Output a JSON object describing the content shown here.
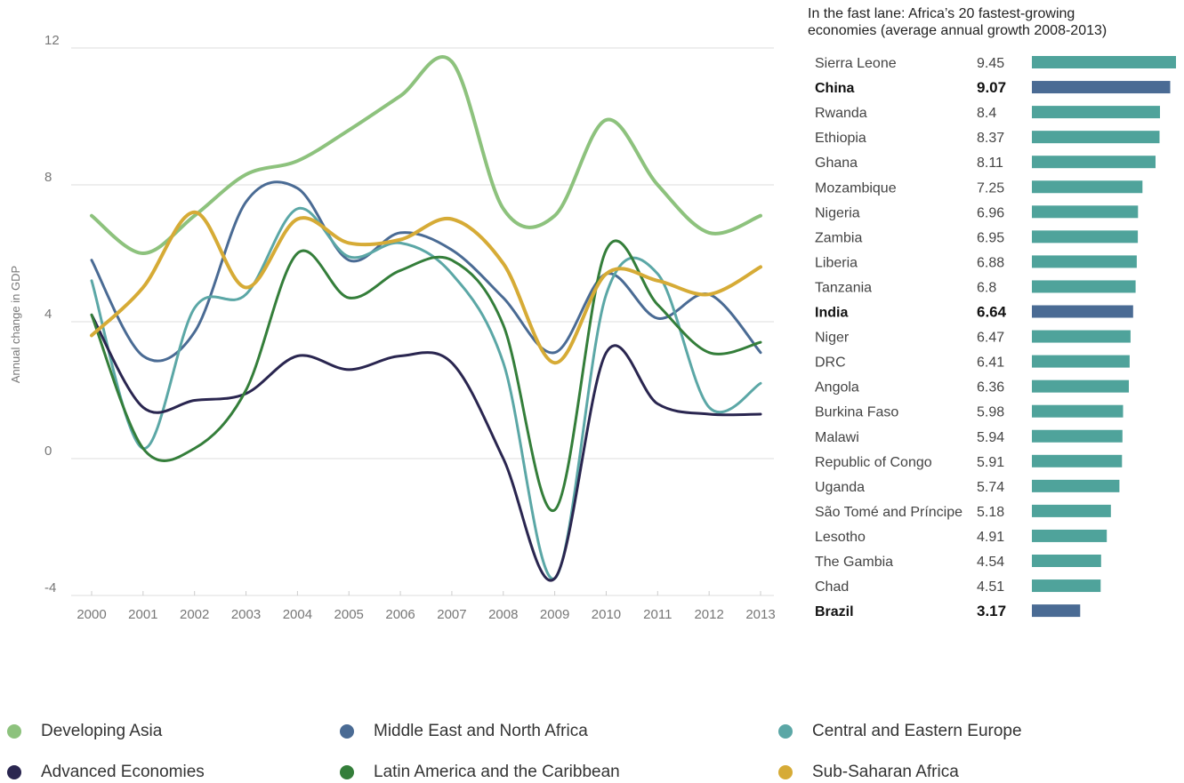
{
  "chart_data": [
    {
      "type": "line",
      "ylabel": "Annual change in GDP",
      "ylim": [
        -4,
        12
      ],
      "y_ticks": [
        "12",
        "8",
        "4",
        "0",
        "-4"
      ],
      "x": [
        "2000",
        "2001",
        "2002",
        "2003",
        "2004",
        "2005",
        "2006",
        "2007",
        "2008",
        "2009",
        "2010",
        "2011",
        "2012",
        "2013"
      ],
      "grid": "horizontal",
      "legend_position": "bottom",
      "series": [
        {
          "name": "Developing Asia",
          "color": "#8dc27d",
          "values": [
            7.1,
            6.0,
            7.1,
            8.3,
            8.7,
            9.6,
            10.6,
            11.6,
            7.3,
            7.1,
            9.9,
            8.0,
            6.6,
            7.1
          ]
        },
        {
          "name": "Middle East and North Africa",
          "color": "#4a6b94",
          "values": [
            5.8,
            3.0,
            3.7,
            7.5,
            7.9,
            5.8,
            6.6,
            6.1,
            4.7,
            3.1,
            5.4,
            4.1,
            4.8,
            3.1
          ]
        },
        {
          "name": "Central and Eastern Europe",
          "color": "#5ba7a6",
          "values": [
            5.2,
            0.3,
            4.4,
            4.8,
            7.3,
            5.9,
            6.3,
            5.4,
            2.8,
            -3.5,
            4.8,
            5.4,
            1.5,
            2.2
          ]
        },
        {
          "name": "Advanced Economies",
          "color": "#2a2650",
          "values": [
            4.2,
            1.5,
            1.7,
            1.9,
            3.0,
            2.6,
            3.0,
            2.8,
            0.0,
            -3.5,
            3.1,
            1.6,
            1.3,
            1.3
          ]
        },
        {
          "name": "Latin America and the Caribbean",
          "color": "#347e3a",
          "values": [
            4.2,
            0.3,
            0.3,
            2.0,
            6.0,
            4.7,
            5.5,
            5.8,
            3.9,
            -1.5,
            6.1,
            4.5,
            3.1,
            3.4
          ]
        },
        {
          "name": "Sub-Saharan Africa",
          "color": "#d6ab36",
          "values": [
            3.6,
            5.0,
            7.2,
            5.0,
            7.0,
            6.3,
            6.4,
            7.0,
            5.7,
            2.8,
            5.4,
            5.2,
            4.8,
            5.6
          ]
        }
      ]
    },
    {
      "type": "bar",
      "orientation": "horizontal",
      "title": "In the fast lane: Africa’s 20 fastest-growing economies (average annual growth 2008-2013)",
      "title_lines": [
        "In the fast lane: Africa’s 20 fastest-growing",
        "economies (average annual growth 2008-2013)"
      ],
      "highlight_color": "#4a6b94",
      "default_color": "#4fa39b",
      "categories": [
        "Sierra Leone",
        "China",
        "Rwanda",
        "Ethiopia",
        "Ghana",
        "Mozambique",
        "Nigeria",
        "Zambia",
        "Liberia",
        "Tanzania",
        "India",
        "Niger",
        "DRC",
        "Angola",
        "Burkina Faso",
        "Malawi",
        "Republic of Congo",
        "Uganda",
        "São Tomé and Príncipe",
        "Lesotho",
        "The Gambia",
        "Chad",
        "Brazil"
      ],
      "values": [
        9.45,
        9.07,
        8.4,
        8.37,
        8.11,
        7.25,
        6.96,
        6.95,
        6.88,
        6.8,
        6.64,
        6.47,
        6.41,
        6.36,
        5.98,
        5.94,
        5.91,
        5.74,
        5.18,
        4.91,
        4.54,
        4.51,
        3.17
      ],
      "value_labels": [
        "9.45",
        "9.07",
        "8.4",
        "8.37",
        "8.11",
        "7.25",
        "6.96",
        "6.95",
        "6.88",
        "6.8",
        "6.64",
        "6.47",
        "6.41",
        "6.36",
        "5.98",
        "5.94",
        "5.91",
        "5.74",
        "5.18",
        "4.91",
        "4.54",
        "4.51",
        "3.17"
      ],
      "highlighted": [
        "China",
        "India",
        "Brazil"
      ]
    }
  ],
  "legend": [
    {
      "label": "Developing Asia",
      "color": "#8dc27d"
    },
    {
      "label": "Middle East and North Africa",
      "color": "#4a6b94"
    },
    {
      "label": "Central and Eastern Europe",
      "color": "#5ba7a6"
    },
    {
      "label": "Advanced Economies",
      "color": "#2a2650"
    },
    {
      "label": "Latin America and the Caribbean",
      "color": "#347e3a"
    },
    {
      "label": "Sub-Saharan Africa",
      "color": "#d6ab36"
    }
  ]
}
